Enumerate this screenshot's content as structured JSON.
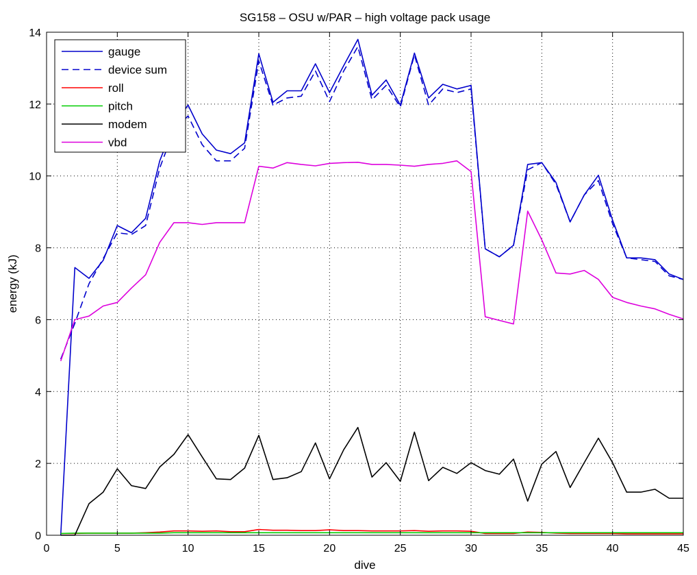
{
  "chart_data": {
    "type": "line",
    "title": "SG158 – OSU w/PAR – high voltage pack usage",
    "xlabel": "dive",
    "ylabel": "energy (kJ)",
    "xlim": [
      0,
      45
    ],
    "ylim": [
      0,
      14
    ],
    "xticks": [
      0,
      5,
      10,
      15,
      20,
      25,
      30,
      35,
      40,
      45
    ],
    "yticks": [
      0,
      2,
      4,
      6,
      8,
      10,
      12,
      14
    ],
    "grid": true,
    "legend_position": "top-left",
    "x": [
      1,
      2,
      3,
      4,
      5,
      6,
      7,
      8,
      9,
      10,
      11,
      12,
      13,
      14,
      15,
      16,
      17,
      18,
      19,
      20,
      21,
      22,
      23,
      24,
      25,
      26,
      27,
      28,
      29,
      30,
      31,
      32,
      33,
      34,
      35,
      36,
      37,
      38,
      39,
      40,
      41,
      42,
      43,
      44,
      45
    ],
    "series": [
      {
        "name": "gauge",
        "color": "#0000cc",
        "dash": "solid",
        "values": [
          0,
          7.45,
          7.15,
          7.65,
          8.62,
          8.42,
          8.82,
          10.42,
          11.42,
          11.97,
          11.17,
          10.72,
          10.62,
          10.92,
          13.4,
          12.05,
          12.37,
          12.37,
          13.12,
          12.32,
          13.07,
          13.8,
          12.25,
          12.67,
          11.97,
          13.42,
          12.17,
          12.55,
          12.42,
          12.52,
          7.97,
          7.75,
          8.07,
          10.32,
          10.37,
          9.82,
          8.72,
          9.47,
          10.02,
          8.77,
          7.72,
          7.72,
          7.67,
          7.27,
          7.12
        ]
      },
      {
        "name": "device sum",
        "color": "#0000cc",
        "dash": "dashed",
        "values": [
          4.9,
          5.9,
          7.0,
          7.7,
          8.42,
          8.37,
          8.62,
          10.22,
          11.27,
          11.67,
          10.87,
          10.42,
          10.42,
          10.77,
          13.2,
          11.97,
          12.17,
          12.22,
          12.92,
          12.07,
          12.92,
          13.6,
          12.12,
          12.52,
          11.92,
          13.37,
          11.97,
          12.42,
          12.32,
          12.42,
          7.97,
          7.75,
          8.07,
          10.17,
          10.37,
          9.77,
          8.72,
          9.47,
          9.87,
          8.67,
          7.72,
          7.67,
          7.62,
          7.22,
          7.12
        ]
      },
      {
        "name": "roll",
        "color": "#ff0000",
        "dash": "solid",
        "values": [
          0.05,
          0.05,
          0.06,
          0.06,
          0.06,
          0.06,
          0.07,
          0.09,
          0.12,
          0.12,
          0.11,
          0.12,
          0.1,
          0.1,
          0.16,
          0.14,
          0.14,
          0.13,
          0.13,
          0.15,
          0.13,
          0.13,
          0.12,
          0.12,
          0.12,
          0.13,
          0.11,
          0.12,
          0.12,
          0.11,
          0.05,
          0.05,
          0.05,
          0.09,
          0.08,
          0.06,
          0.05,
          0.05,
          0.05,
          0.05,
          0.04,
          0.04,
          0.04,
          0.04,
          0.04
        ]
      },
      {
        "name": "pitch",
        "color": "#00cc00",
        "dash": "solid",
        "values": [
          0.05,
          0.06,
          0.06,
          0.06,
          0.06,
          0.06,
          0.06,
          0.06,
          0.07,
          0.07,
          0.07,
          0.07,
          0.07,
          0.07,
          0.07,
          0.07,
          0.07,
          0.07,
          0.07,
          0.07,
          0.07,
          0.07,
          0.07,
          0.07,
          0.07,
          0.07,
          0.07,
          0.07,
          0.07,
          0.07,
          0.07,
          0.07,
          0.07,
          0.07,
          0.07,
          0.07,
          0.07,
          0.07,
          0.07,
          0.07,
          0.07,
          0.07,
          0.07,
          0.07,
          0.07
        ]
      },
      {
        "name": "modem",
        "color": "#000000",
        "dash": "solid",
        "values": [
          0,
          0,
          0.88,
          1.2,
          1.85,
          1.38,
          1.3,
          1.9,
          2.25,
          2.8,
          2.18,
          1.57,
          1.55,
          1.87,
          2.78,
          1.55,
          1.6,
          1.77,
          2.57,
          1.57,
          2.38,
          3.0,
          1.62,
          2.02,
          1.5,
          2.87,
          1.52,
          1.89,
          1.72,
          2.02,
          1.8,
          1.7,
          2.12,
          0.95,
          1.98,
          2.33,
          1.33,
          2.02,
          2.7,
          2.02,
          1.2,
          1.2,
          1.28,
          1.03,
          1.03
        ]
      },
      {
        "name": "vbd",
        "color": "#dd00dd",
        "dash": "solid",
        "values": [
          4.85,
          6.0,
          6.1,
          6.38,
          6.48,
          6.88,
          7.25,
          8.15,
          8.7,
          8.7,
          8.65,
          8.7,
          8.7,
          8.7,
          10.27,
          10.22,
          10.37,
          10.32,
          10.28,
          10.35,
          10.37,
          10.38,
          10.32,
          10.32,
          10.3,
          10.27,
          10.32,
          10.35,
          10.42,
          10.12,
          6.08,
          5.98,
          5.88,
          9.02,
          8.22,
          7.3,
          7.27,
          7.37,
          7.12,
          6.62,
          6.48,
          6.38,
          6.3,
          6.15,
          6.02
        ]
      }
    ]
  }
}
